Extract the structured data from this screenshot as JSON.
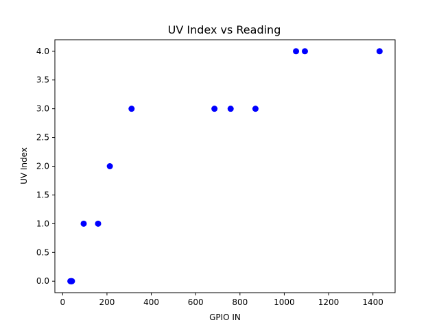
{
  "chart_data": {
    "type": "scatter",
    "title": "UV Index vs Reading",
    "xlabel": "GPIO IN",
    "ylabel": "UV Index",
    "xlim": [
      -35,
      1500
    ],
    "ylim": [
      -0.2,
      4.2
    ],
    "xticks": [
      0,
      200,
      400,
      600,
      800,
      1000,
      1200,
      1400
    ],
    "xtick_labels": [
      "0",
      "200",
      "400",
      "600",
      "800",
      "1000",
      "1200",
      "1400"
    ],
    "yticks": [
      0.0,
      0.5,
      1.0,
      1.5,
      2.0,
      2.5,
      3.0,
      3.5,
      4.0
    ],
    "ytick_labels": [
      "0.0",
      "0.5",
      "1.0",
      "1.5",
      "2.0",
      "2.5",
      "3.0",
      "3.5",
      "4.0"
    ],
    "grid": false,
    "color": "#0000ff",
    "series": [
      {
        "x": [
          35,
          38,
          40,
          42,
          95,
          160,
          213,
          311,
          685,
          758,
          870,
          1053,
          1093,
          1430
        ],
        "y": [
          0,
          0,
          0,
          0,
          1,
          1,
          2,
          3,
          3,
          3,
          3,
          4,
          4,
          4
        ]
      }
    ]
  }
}
